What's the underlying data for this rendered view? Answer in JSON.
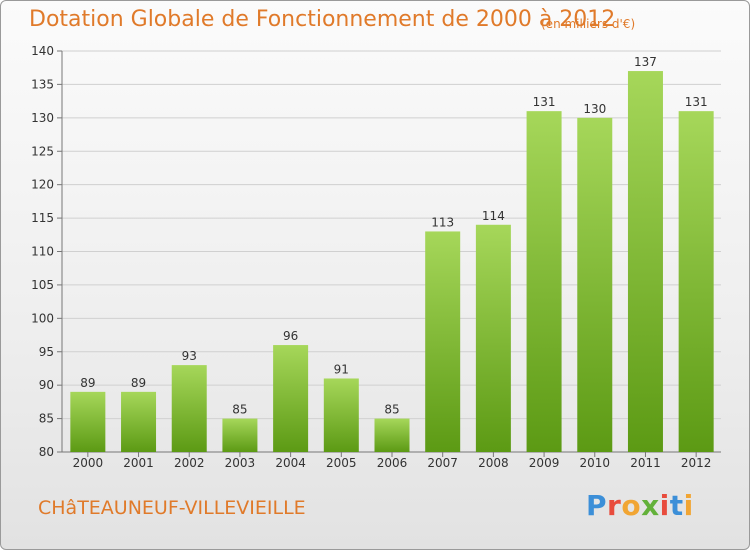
{
  "header": {
    "title": "Dotation Globale de Fonctionnement de 2000 à 2012",
    "subtitle": "(en milliers d'€)"
  },
  "footer": {
    "commune": "CHâTEAUNEUF-VILLEVIEILLE",
    "logo": "Proxiti"
  },
  "colors": {
    "bar_top": "#a6d75a",
    "bar_bottom": "#5c9a14",
    "accent": "#e07a2a"
  },
  "chart_data": {
    "type": "bar",
    "title": "Dotation Globale de Fonctionnement de 2000 à 2012",
    "subtitle": "(en milliers d'€)",
    "categories": [
      "2000",
      "2001",
      "2002",
      "2003",
      "2004",
      "2005",
      "2006",
      "2007",
      "2008",
      "2009",
      "2010",
      "2011",
      "2012"
    ],
    "values": [
      89,
      89,
      93,
      85,
      96,
      91,
      85,
      113,
      114,
      131,
      130,
      137,
      131
    ],
    "ylim": [
      80,
      140
    ],
    "yticks": [
      80,
      85,
      90,
      95,
      100,
      105,
      110,
      115,
      120,
      125,
      130,
      135,
      140
    ],
    "grid": true,
    "xlabel": "",
    "ylabel": ""
  }
}
